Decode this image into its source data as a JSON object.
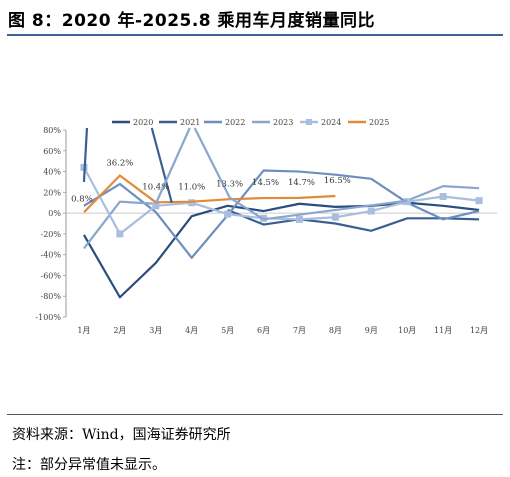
{
  "figure": {
    "title": "图 8：2020 年-2025.8 乘用车月度销量同比",
    "source": "资料来源：Wind，国海证券研究所",
    "note": "注：部分异常值未显示。"
  },
  "chart_data": {
    "type": "line",
    "categories": [
      "1月",
      "2月",
      "3月",
      "4月",
      "5月",
      "6月",
      "7月",
      "8月",
      "9月",
      "10月",
      "11月",
      "12月"
    ],
    "y_ticks": [
      "-100%",
      "-80%",
      "-60%",
      "-40%",
      "-20%",
      "0%",
      "20%",
      "40%",
      "60%",
      "80%"
    ],
    "ylim": [
      -100,
      80
    ],
    "legend_position": "top",
    "series": [
      {
        "name": "2020",
        "color": "#2a4d80",
        "marker": "none",
        "values": [
          -21,
          -81,
          -48,
          -3,
          7,
          2,
          9,
          6,
          7,
          10,
          7,
          3
        ]
      },
      {
        "name": "2021",
        "color": "#3b5f94",
        "marker": "none",
        "values": [
          null,
          null,
          null,
          null,
          3,
          -11,
          -6,
          -10,
          -17,
          -5,
          -5,
          -6
        ]
      },
      {
        "name": "2022",
        "color": "#6d8ebf",
        "marker": "none",
        "values": [
          7,
          28,
          1,
          -43,
          -2,
          41,
          40,
          37,
          33,
          10,
          -6,
          2
        ]
      },
      {
        "name": "2023",
        "color": "#8aa6cf",
        "marker": "none",
        "values": [
          -34,
          11,
          9,
          null,
          null,
          null,
          null,
          null,
          null,
          12,
          26,
          24
        ]
      },
      {
        "name": "2024",
        "color": "#a9bedc",
        "marker": "square",
        "values": [
          44,
          -20,
          7,
          10,
          -1,
          -5,
          -6,
          -4,
          2,
          11,
          16,
          12
        ]
      },
      {
        "name": "2025",
        "color": "#e08a3a",
        "marker": "none",
        "values": [
          0.8,
          36.2,
          10.4,
          11.0,
          13.3,
          14.5,
          14.7,
          16.5,
          null,
          null,
          null,
          null
        ]
      }
    ],
    "data_labels": [
      "0.8%",
      "36.2%",
      "10.4%",
      "11.0%",
      "13.3%",
      "14.5%",
      "14.7%",
      "16.5%"
    ]
  }
}
